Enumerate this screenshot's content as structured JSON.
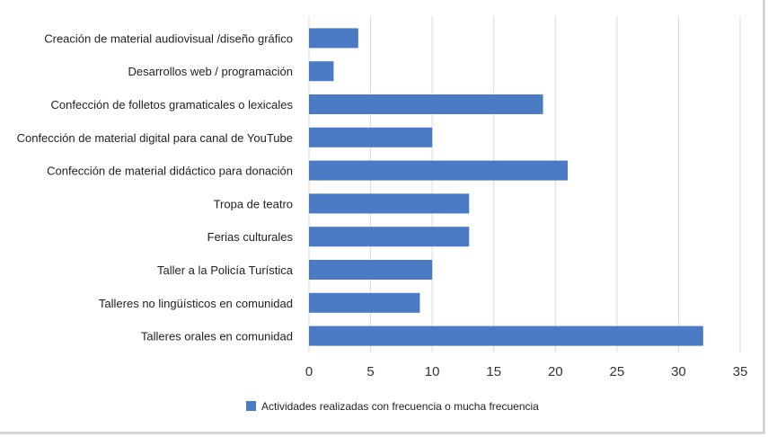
{
  "chart_data": {
    "type": "bar",
    "orientation": "horizontal",
    "categories": [
      "Creación de material audiovisual /diseño gráfico",
      "Desarrollos web / programación",
      "Confección de folletos gramaticales o lexicales",
      "Confección de material digital para canal de YouTube",
      "Confección de material didáctico para donación",
      "Tropa de teatro",
      "Ferias culturales",
      "Taller a la Policía Turística",
      "Talleres no lingüísticos en comunidad",
      "Talleres orales en comunidad"
    ],
    "series": [
      {
        "name": "Actividades realizadas con frecuencia o mucha frecuencia",
        "values": [
          4,
          2,
          19,
          10,
          21,
          13,
          13,
          10,
          9,
          32
        ],
        "color": "#4a7bc4"
      }
    ],
    "xlim": [
      0,
      35
    ],
    "xticks": [
      0,
      5,
      10,
      15,
      20,
      25,
      30,
      35
    ],
    "grid": true,
    "legend_position": "bottom",
    "title": "",
    "xlabel": "",
    "ylabel": ""
  }
}
